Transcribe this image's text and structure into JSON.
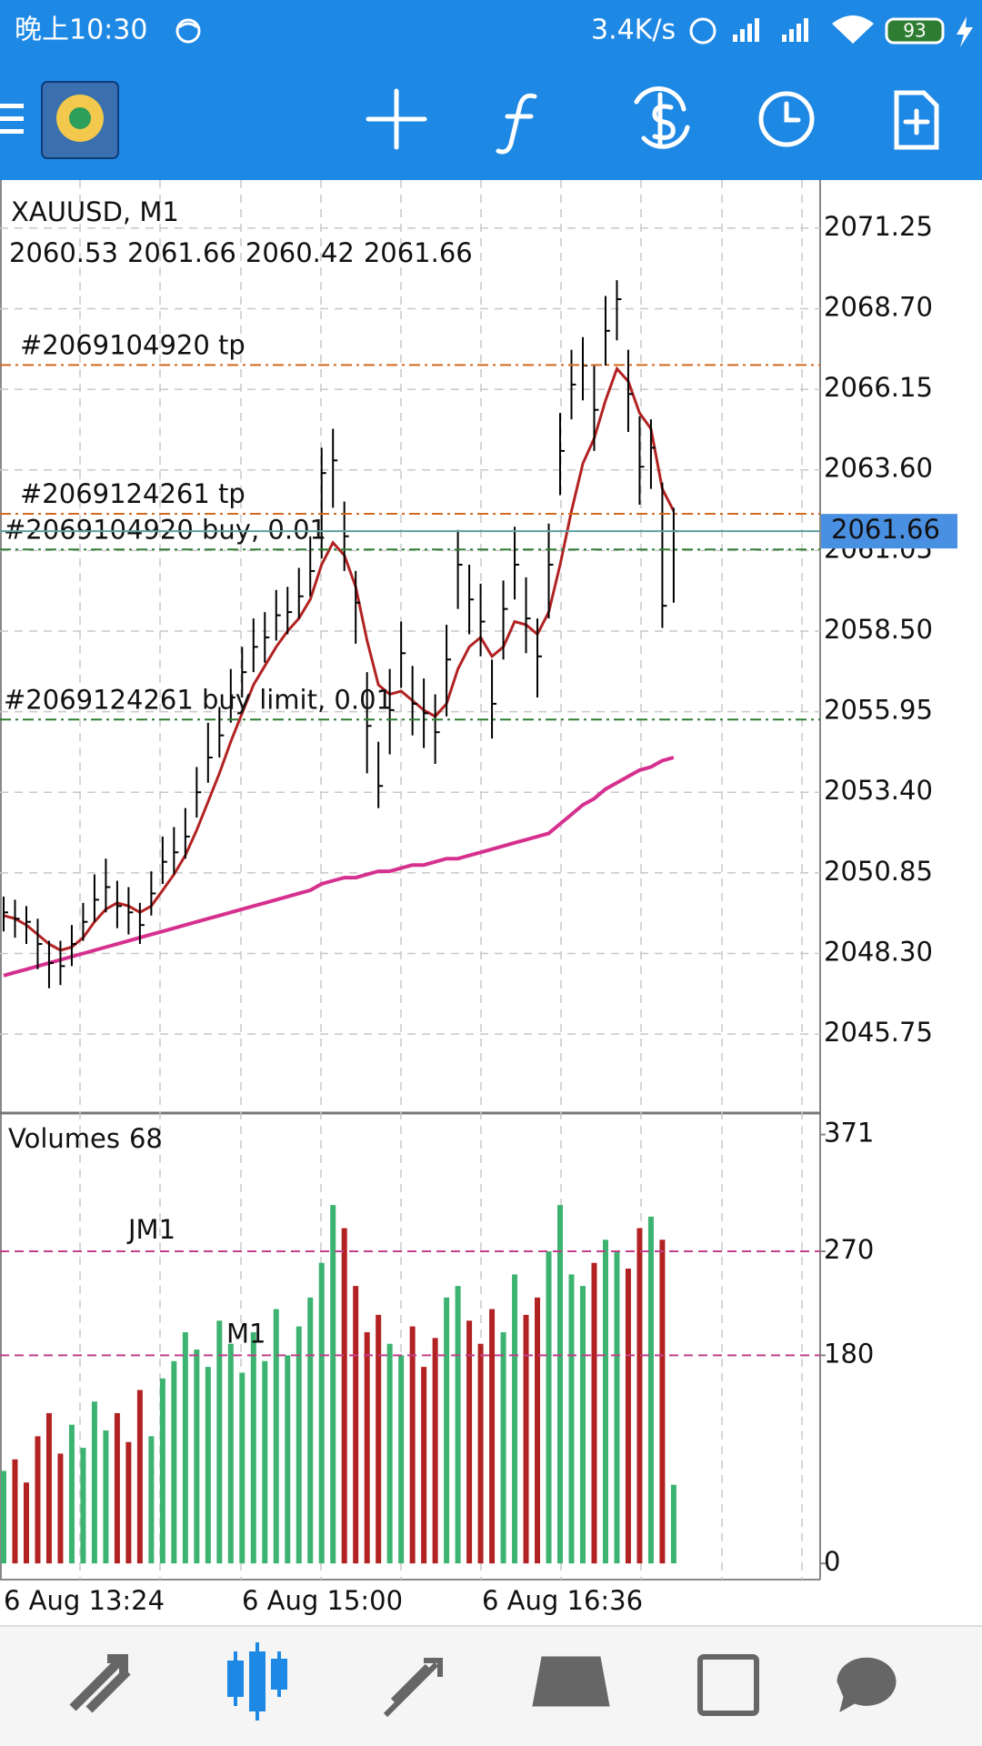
{
  "status_bar": {
    "time": "晚上10:30",
    "speed": "3.4K/s",
    "battery": "93"
  },
  "chart": {
    "type": "ohlc",
    "symbol": "XAUUSD, M1",
    "ohlc": [
      2060.53,
      2061.66,
      2060.42,
      2061.66
    ],
    "ylim": [
      2043.25,
      2072.77
    ],
    "yticks": [
      2071.25,
      {
        "value": 2068.7,
        "label": "2068.70"
      },
      2066.15,
      {
        "value": 2063.6,
        "label": "2063.60"
      },
      2061.05,
      {
        "value": 2058.5,
        "label": "2058.50"
      },
      2055.95,
      {
        "value": 2053.4,
        "label": "2053.40"
      },
      2050.85,
      {
        "value": 2048.3,
        "label": "2048.30"
      },
      2045.75
    ],
    "grid": true,
    "bar_color": "#000000",
    "highs": [
      2050.1,
      2050.0,
      2049.8,
      2049.4,
      2048.7,
      2048.7,
      2049.2,
      2049.9,
      2050.8,
      2051.3,
      2050.6,
      2050.4,
      2049.9,
      2050.9,
      2052.0,
      2052.3,
      2052.9,
      2054.2,
      2055.6,
      2056.1,
      2057.3,
      2058.0,
      2058.9,
      2059.1,
      2059.8,
      2059.9,
      2060.5,
      2061.5,
      2064.3,
      2064.9,
      2062.6,
      2060.4,
      2057.2,
      2055.0,
      2057.3,
      2058.8,
      2057.4,
      2057.0,
      2056.5,
      2058.7,
      2061.7,
      2060.6,
      2060.0,
      2057.6,
      2060.1,
      2061.8,
      2060.2,
      2058.9,
      2061.9,
      2065.4,
      2067.4,
      2067.8,
      2066.9,
      2069.1,
      2069.6,
      2067.4,
      2065.3,
      2065.2,
      2063.2,
      2062.4
    ],
    "lows": [
      2049.0,
      2048.8,
      2048.6,
      2047.8,
      2047.2,
      2047.3,
      2047.9,
      2048.7,
      2049.3,
      2049.6,
      2049.1,
      2048.9,
      2048.6,
      2049.5,
      2050.5,
      2050.8,
      2051.3,
      2052.6,
      2053.7,
      2054.5,
      2055.6,
      2056.4,
      2057.2,
      2057.5,
      2058.2,
      2058.4,
      2058.9,
      2059.6,
      2060.8,
      2062.4,
      2060.4,
      2058.1,
      2054.0,
      2052.9,
      2054.6,
      2056.7,
      2055.2,
      2054.8,
      2054.3,
      2055.8,
      2059.2,
      2058.4,
      2057.7,
      2055.1,
      2057.6,
      2059.5,
      2057.8,
      2056.4,
      2058.9,
      2062.8,
      2065.2,
      2065.8,
      2064.2,
      2066.9,
      2067.7,
      2064.8,
      2062.5,
      2063.0,
      2058.6,
      2059.4
    ],
    "closes": [
      2049.6,
      2049.4,
      2049.3,
      2048.6,
      2048.0,
      2047.9,
      2048.6,
      2049.3,
      2050.0,
      2050.4,
      2049.8,
      2049.6,
      2049.2,
      2050.2,
      2051.2,
      2051.5,
      2052.0,
      2053.4,
      2054.5,
      2055.2,
      2056.4,
      2057.2,
      2058.0,
      2058.3,
      2059.0,
      2059.1,
      2059.6,
      2060.4,
      2063.5,
      2063.9,
      2061.5,
      2059.4,
      2055.5,
      2053.6,
      2056.0,
      2057.8,
      2056.2,
      2055.9,
      2055.3,
      2057.6,
      2060.6,
      2059.5,
      2058.8,
      2056.2,
      2059.2,
      2060.6,
      2058.9,
      2057.7,
      2060.6,
      2064.2,
      2066.3,
      2066.9,
      2065.5,
      2068.0,
      2069.0,
      2066.0,
      2063.7,
      2064.3,
      2059.3,
      2061.66
    ],
    "ma": [
      {
        "color": "#b22222",
        "values": [
          2049.5,
          2049.4,
          2049.2,
          2048.9,
          2048.6,
          2048.4,
          2048.5,
          2048.8,
          2049.3,
          2049.7,
          2049.9,
          2049.8,
          2049.6,
          2049.8,
          2050.3,
          2050.8,
          2051.4,
          2052.2,
          2053.1,
          2054.0,
          2055.0,
          2055.9,
          2056.8,
          2057.4,
          2058.0,
          2058.5,
          2058.9,
          2059.5,
          2060.6,
          2061.3,
          2060.9,
          2059.9,
          2058.2,
          2056.8,
          2056.5,
          2056.6,
          2056.3,
          2056.0,
          2055.8,
          2056.2,
          2057.3,
          2058.0,
          2058.3,
          2057.7,
          2058.0,
          2058.8,
          2058.7,
          2058.4,
          2059.1,
          2060.6,
          2062.3,
          2063.8,
          2064.6,
          2065.8,
          2066.8,
          2066.4,
          2065.4,
          2064.9,
          2063.0,
          2062.3
        ]
      },
      {
        "color": "#d6308f",
        "values": [
          2047.6,
          2047.7,
          2047.8,
          2047.9,
          2048.0,
          2048.1,
          2048.2,
          2048.3,
          2048.4,
          2048.5,
          2048.6,
          2048.7,
          2048.8,
          2048.9,
          2049.0,
          2049.1,
          2049.2,
          2049.3,
          2049.4,
          2049.5,
          2049.6,
          2049.7,
          2049.8,
          2049.9,
          2050.0,
          2050.1,
          2050.2,
          2050.3,
          2050.5,
          2050.6,
          2050.7,
          2050.7,
          2050.8,
          2050.9,
          2050.9,
          2051.0,
          2051.1,
          2051.1,
          2051.2,
          2051.3,
          2051.3,
          2051.4,
          2051.5,
          2051.6,
          2051.7,
          2051.8,
          2051.9,
          2052.0,
          2052.1,
          2052.4,
          2052.7,
          2053.0,
          2053.2,
          2053.5,
          2053.7,
          2053.9,
          2054.1,
          2054.2,
          2054.4,
          2054.5
        ]
      }
    ],
    "orders": [
      {
        "label": "#2069104920 tp",
        "price": 2066.92,
        "color": "#d2691e"
      },
      {
        "label": "#2069124261 tp",
        "price": 2062.21,
        "color": "#d2691e"
      },
      {
        "label": "#2069104920 buy, 0.01",
        "price": 2061.08,
        "color": "#2e7d32"
      },
      {
        "label": "#2069124261 buy limit, 0.01",
        "price": 2055.7,
        "color": "#2e7d32"
      }
    ],
    "bid": {
      "value": 2061.66,
      "color": "#4a90e2",
      "line_color": "#5f9ea0"
    },
    "time_labels": [
      "6 Aug 13:24",
      "6 Aug 15:00",
      "6 Aug 16:36"
    ]
  },
  "volume": {
    "type": "bar",
    "name": "Volumes",
    "current": 68,
    "values": [
      80,
      90,
      70,
      110,
      130,
      95,
      120,
      100,
      140,
      115,
      130,
      105,
      150,
      110,
      160,
      175,
      200,
      185,
      170,
      210,
      190,
      165,
      200,
      175,
      220,
      180,
      205,
      230,
      260,
      310,
      290,
      240,
      200,
      215,
      190,
      180,
      205,
      170,
      195,
      230,
      240,
      210,
      190,
      220,
      200,
      250,
      215,
      230,
      270,
      310,
      250,
      240,
      260,
      280,
      270,
      255,
      290,
      300,
      280,
      68
    ],
    "ylim": [
      -14,
      388
    ],
    "yticks": [
      0,
      180,
      270,
      371
    ],
    "up_color": "#3cb371",
    "down_color": "#b22222",
    "levels": [
      {
        "label": "JM1",
        "value": 270,
        "color": "#c0408a"
      },
      {
        "label": "M1",
        "value": 180,
        "color": "#c0408a"
      }
    ]
  }
}
